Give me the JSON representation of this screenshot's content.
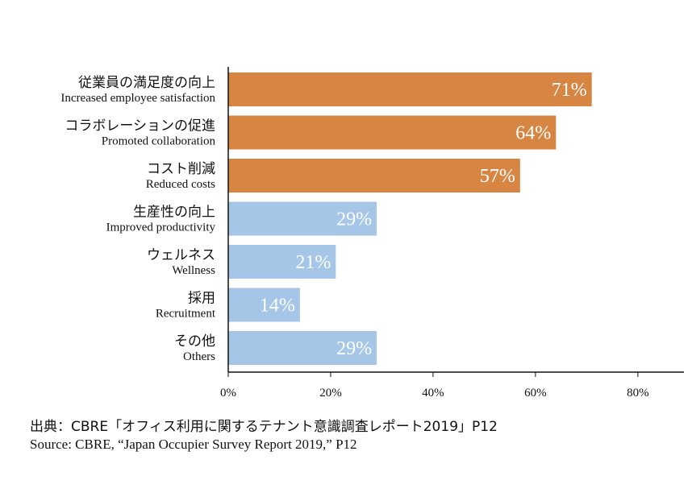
{
  "chart_data": {
    "type": "bar",
    "orientation": "horizontal",
    "categories": [
      {
        "ja": "従業員の満足度の向上",
        "en": "Increased employee satisfaction"
      },
      {
        "ja": "コラボレーションの促進",
        "en": "Promoted collaboration"
      },
      {
        "ja": "コスト削減",
        "en": "Reduced costs"
      },
      {
        "ja": "生産性の向上",
        "en": "Improved productivity"
      },
      {
        "ja": "ウェルネス",
        "en": "Wellness"
      },
      {
        "ja": "採用",
        "en": "Recruitment"
      },
      {
        "ja": "その他",
        "en": "Others"
      }
    ],
    "values": [
      71,
      64,
      57,
      29,
      21,
      14,
      29
    ],
    "data_labels": [
      "71%",
      "64%",
      "57%",
      "29%",
      "21%",
      "14%",
      "29%"
    ],
    "highlight_count": 3,
    "colors": {
      "highlight": "#D68642",
      "normal": "#A6C6E8",
      "axis": "#111111"
    },
    "xlim": [
      0,
      89
    ],
    "xticks": [
      0,
      20,
      40,
      60,
      80
    ],
    "xtick_labels": [
      "0%",
      "20%",
      "40%",
      "60%",
      "80%"
    ],
    "grid": false,
    "legend": "none"
  },
  "source": {
    "ja": "出典：CBRE「オフィス利用に関するテナント意識調査レポート2019」P12",
    "en": "Source: CBRE, “Japan Occupier Survey Report 2019,” P12"
  }
}
